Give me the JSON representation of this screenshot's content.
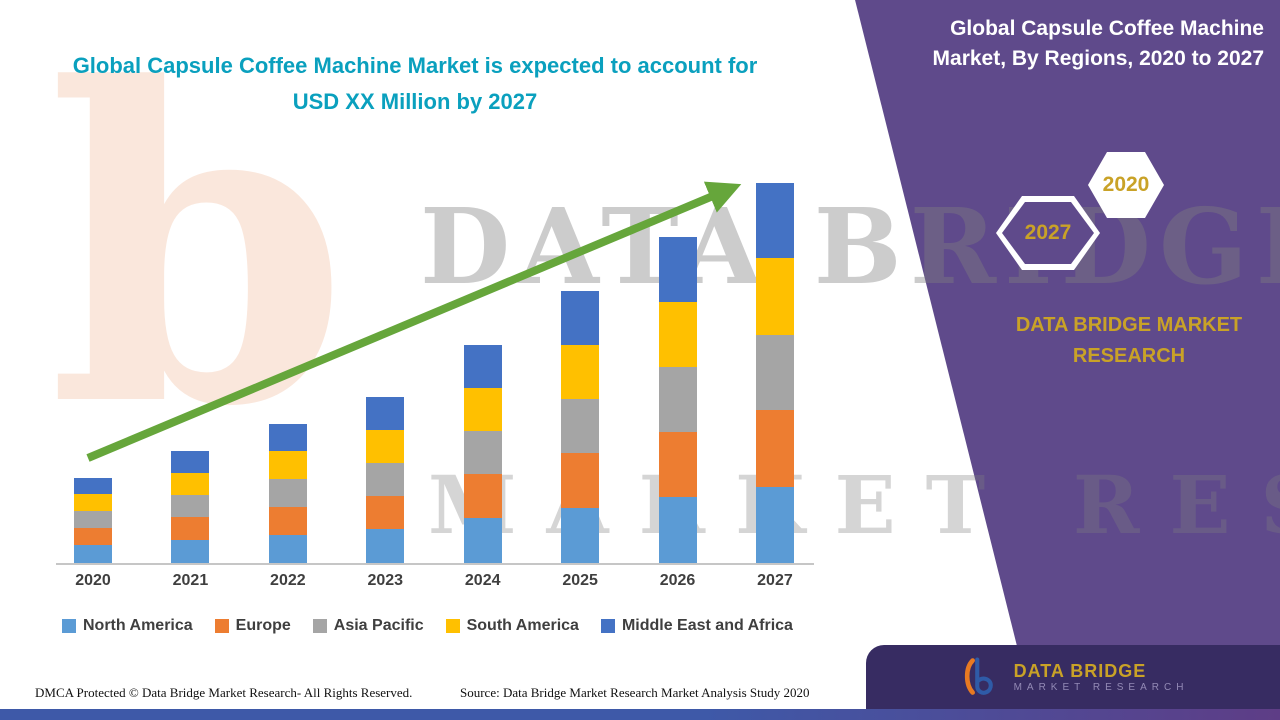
{
  "theme": {
    "teal": "#0AA0BE",
    "purple": "#5F4A8B",
    "panel_dark": "#372C62",
    "gold": "#C9A227",
    "arrow_green": "#66A63B"
  },
  "header": {
    "title": "Global Capsule Coffee Machine Market is expected to account for USD XX Million by 2027"
  },
  "panel": {
    "title": "Global Capsule Coffee Machine Market, By Regions, 2020 to 2027",
    "year_top": "2020",
    "year_bottom": "2027",
    "brand": "DATA BRIDGE MARKET RESEARCH"
  },
  "watermark": {
    "monogram": "b",
    "line1": "DATA BRIDGE",
    "line2": "MARKET RESEARCH"
  },
  "footer": {
    "dmca": "DMCA Protected © Data Bridge Market Research- All Rights Reserved.",
    "source": "Source: Data Bridge Market Research Market Analysis Study 2020",
    "logo_title": "DATA BRIDGE",
    "logo_subtitle": "MARKET RESEARCH"
  },
  "chart_data": {
    "type": "bar",
    "stacked": true,
    "title": "Global Capsule Coffee Machine Market, By Regions, 2020 to 2027",
    "xlabel": "",
    "ylabel": "",
    "units": "USD XX Million",
    "ylim": [
      0,
      400
    ],
    "grid": false,
    "legend_position": "bottom",
    "categories": [
      "2020",
      "2021",
      "2022",
      "2023",
      "2024",
      "2025",
      "2026",
      "2027"
    ],
    "series": [
      {
        "name": "North America",
        "color": "#5B9BD5",
        "values": [
          18,
          23,
          28,
          34,
          45,
          55,
          66,
          76
        ]
      },
      {
        "name": "Europe",
        "color": "#ED7D31",
        "values": [
          17,
          23,
          28,
          33,
          44,
          55,
          65,
          77
        ]
      },
      {
        "name": "Asia Pacific",
        "color": "#A5A5A5",
        "values": [
          17,
          22,
          28,
          33,
          43,
          54,
          65,
          75
        ]
      },
      {
        "name": "South America",
        "color": "#FFC000",
        "values": [
          17,
          22,
          28,
          33,
          43,
          54,
          65,
          77
        ]
      },
      {
        "name": "Middle East and Africa",
        "color": "#4472C4",
        "values": [
          16,
          22,
          27,
          33,
          43,
          54,
          65,
          75
        ]
      }
    ],
    "trend_arrow": true
  }
}
